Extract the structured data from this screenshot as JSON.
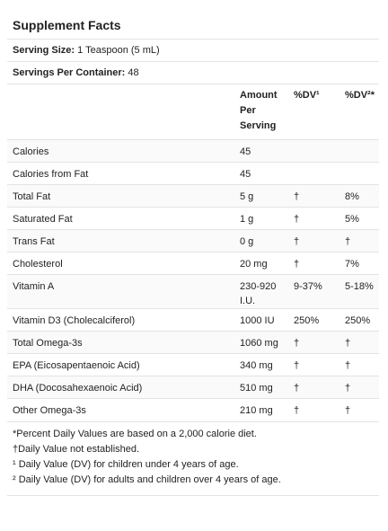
{
  "title": "Supplement Facts",
  "serving_size": {
    "label": "Serving Size:",
    "value": "1 Teaspoon (5 mL)"
  },
  "servings_per_container": {
    "label": "Servings Per Container:",
    "value": "48"
  },
  "table": {
    "header": {
      "amount": "Amount Per Serving",
      "dv1": "%DV¹",
      "dv2": "%DV²*"
    },
    "rows": [
      {
        "label": "Calories",
        "amount": "45"
      },
      {
        "label": "Calories from Fat",
        "amount": "45"
      },
      {
        "label": "Total Fat",
        "amount": "5 g",
        "dv1": "†",
        "dv2": "8%"
      },
      {
        "label": "Saturated Fat",
        "amount": "1 g",
        "dv1": "†",
        "dv2": "5%"
      },
      {
        "label": "Trans Fat",
        "amount": "0 g",
        "dv1": "†",
        "dv2": "†"
      },
      {
        "label": "Cholesterol",
        "amount": "20 mg",
        "dv1": "†",
        "dv2": "7%"
      },
      {
        "label": "Vitamin A",
        "amount": "230-920 I.U.",
        "dv1": "9-37%",
        "dv2": "5-18%"
      },
      {
        "label": "Vitamin D3 (Cholecalciferol)",
        "amount": "1000 IU",
        "dv1": "250%",
        "dv2": "250%"
      },
      {
        "label": "Total Omega-3s",
        "amount": "1060 mg",
        "dv1": "†",
        "dv2": "†"
      },
      {
        "label": "EPA (Eicosapentaenoic Acid)",
        "amount": "340 mg",
        "dv1": "†",
        "dv2": "†"
      },
      {
        "label": "DHA (Docosahexaenoic Acid)",
        "amount": "510 mg",
        "dv1": "†",
        "dv2": "†"
      },
      {
        "label": "Other Omega-3s",
        "amount": "210 mg",
        "dv1": "†",
        "dv2": "†"
      }
    ]
  },
  "footnotes": [
    "*Percent Daily Values are based on a 2,000 calorie diet.",
    "†Daily Value not established.",
    "¹ Daily Value (DV) for children under 4 years of age.",
    "² Daily Value (DV) for adults and children over 4 years of age."
  ]
}
